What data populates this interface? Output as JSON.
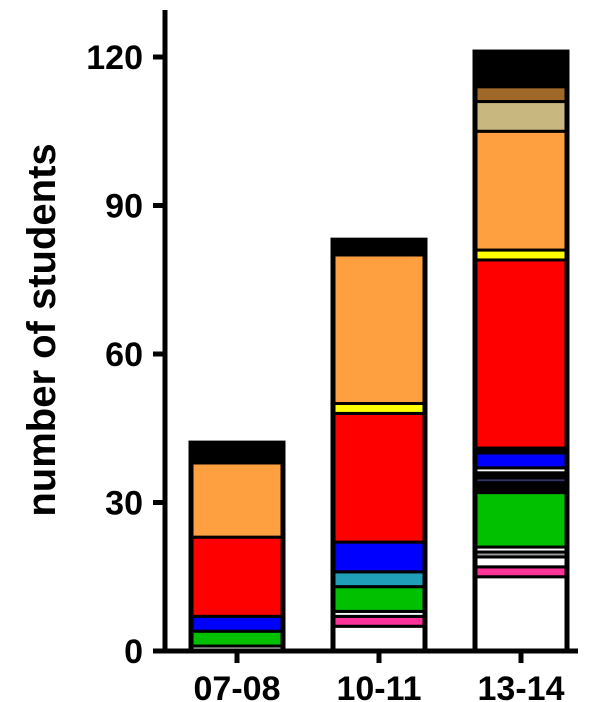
{
  "chart_data": {
    "type": "bar",
    "stacked": true,
    "ylabel": "number of students",
    "ylim": [
      0,
      130
    ],
    "yticks": [
      0,
      30,
      60,
      90,
      120
    ],
    "ytick_labels": [
      "0",
      "30",
      "60",
      "90",
      "120"
    ],
    "categories": [
      "07-08",
      "10-11",
      "13-14"
    ],
    "legend": "none",
    "grid": false,
    "bars": [
      {
        "category": "07-08",
        "total": 42,
        "segments": [
          {
            "value": 1,
            "color": "#ffffff"
          },
          {
            "value": 3,
            "color": "#00c000"
          },
          {
            "value": 3,
            "color": "#0000ff"
          },
          {
            "value": 16,
            "color": "#ff0000"
          },
          {
            "value": 15,
            "color": "#ffa040"
          },
          {
            "value": 4,
            "color": "#000000"
          }
        ]
      },
      {
        "category": "10-11",
        "total": 83,
        "segments": [
          {
            "value": 5,
            "color": "#ffffff"
          },
          {
            "value": 2,
            "color": "#ff3399"
          },
          {
            "value": 1,
            "color": "#ffffff"
          },
          {
            "value": 5,
            "color": "#00c000"
          },
          {
            "value": 3,
            "color": "#20a0b8"
          },
          {
            "value": 6,
            "color": "#0000ff"
          },
          {
            "value": 26,
            "color": "#ff0000"
          },
          {
            "value": 2,
            "color": "#ffff00"
          },
          {
            "value": 30,
            "color": "#ffa040"
          },
          {
            "value": 3,
            "color": "#000000"
          }
        ]
      },
      {
        "category": "13-14",
        "total": 121,
        "segments": [
          {
            "value": 15,
            "color": "#ffffff"
          },
          {
            "value": 2,
            "color": "#ff3399"
          },
          {
            "value": 2,
            "color": "#ffffff"
          },
          {
            "value": 1,
            "color": "#999999"
          },
          {
            "value": 1,
            "color": "#ffffff"
          },
          {
            "value": 11,
            "color": "#00c000"
          },
          {
            "value": 2,
            "color": "#000000"
          },
          {
            "value": 1,
            "color": "#333366"
          },
          {
            "value": 1,
            "color": "#000000"
          },
          {
            "value": 1,
            "color": "#ffffff"
          },
          {
            "value": 3,
            "color": "#0000ff"
          },
          {
            "value": 1,
            "color": "#000000"
          },
          {
            "value": 38,
            "color": "#ff0000"
          },
          {
            "value": 2,
            "color": "#ffff00"
          },
          {
            "value": 24,
            "color": "#ffa040"
          },
          {
            "value": 6,
            "color": "#c8b880"
          },
          {
            "value": 3,
            "color": "#a06828"
          },
          {
            "value": 7,
            "color": "#000000"
          }
        ]
      }
    ]
  }
}
